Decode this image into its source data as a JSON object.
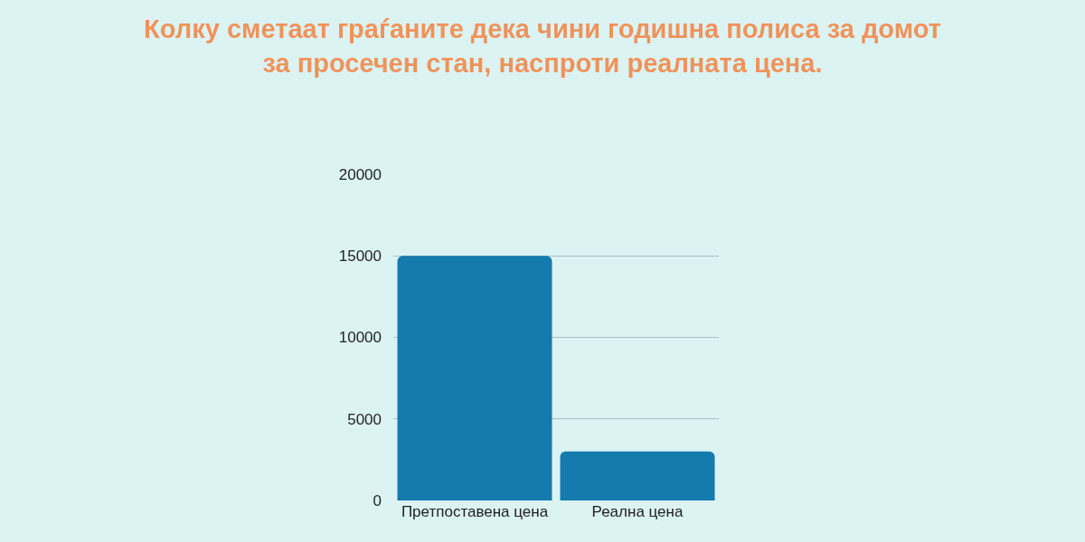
{
  "chart_data": {
    "type": "bar",
    "title": "Колку сметаат граѓаните дека чини годишна полиса за домот\nза просечен стан, наспроти реалната цена.",
    "categories": [
      "Претпоставена цена",
      "Реална цена"
    ],
    "values": [
      15000,
      3000
    ],
    "color": "#157aae",
    "ylim": [
      0,
      20000
    ],
    "yticks": [
      0,
      5000,
      10000,
      15000,
      20000
    ],
    "grid": "y"
  }
}
